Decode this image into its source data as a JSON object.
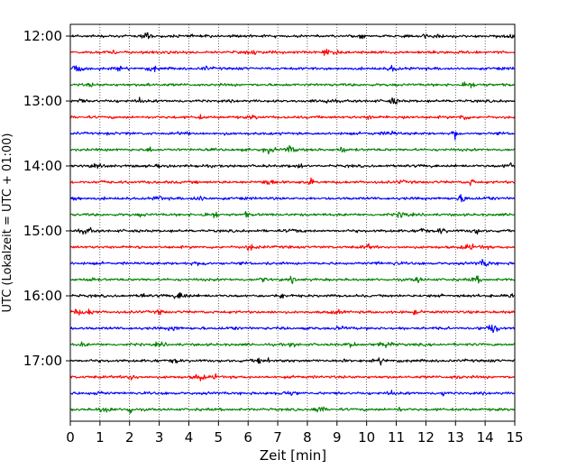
{
  "chart_data": {
    "type": "line",
    "subtype": "dayplot-seismogram",
    "title": "",
    "xlabel": "Zeit  [min]",
    "ylabel": "UTC (Lokalzeit = UTC + 01:00)",
    "xlim": [
      0,
      15
    ],
    "x_ticks": [
      "0",
      "1",
      "2",
      "3",
      "4",
      "5",
      "6",
      "7",
      "8",
      "9",
      "10",
      "11",
      "12",
      "13",
      "14",
      "15"
    ],
    "y_ticks": [
      "12:00",
      "13:00",
      "14:00",
      "15:00",
      "16:00",
      "17:00"
    ],
    "grid": "vertical dotted lines at each minute",
    "colors": [
      "#000000",
      "#ff0000",
      "#0000ff",
      "#008000"
    ],
    "traces": [
      {
        "start": "12:00",
        "color": "black"
      },
      {
        "start": "12:15",
        "color": "red"
      },
      {
        "start": "12:30",
        "color": "blue"
      },
      {
        "start": "12:45",
        "color": "green"
      },
      {
        "start": "13:00",
        "color": "black"
      },
      {
        "start": "13:15",
        "color": "red"
      },
      {
        "start": "13:30",
        "color": "blue"
      },
      {
        "start": "13:45",
        "color": "green"
      },
      {
        "start": "14:00",
        "color": "black"
      },
      {
        "start": "14:15",
        "color": "red"
      },
      {
        "start": "14:30",
        "color": "blue"
      },
      {
        "start": "14:45",
        "color": "green"
      },
      {
        "start": "15:00",
        "color": "black"
      },
      {
        "start": "15:15",
        "color": "red"
      },
      {
        "start": "15:30",
        "color": "blue"
      },
      {
        "start": "15:45",
        "color": "green"
      },
      {
        "start": "16:00",
        "color": "black"
      },
      {
        "start": "16:15",
        "color": "red"
      },
      {
        "start": "16:30",
        "color": "blue"
      },
      {
        "start": "16:45",
        "color": "green"
      },
      {
        "start": "17:00",
        "color": "black"
      },
      {
        "start": "17:15",
        "color": "red"
      },
      {
        "start": "17:30",
        "color": "blue"
      },
      {
        "start": "17:45",
        "color": "green"
      }
    ]
  }
}
